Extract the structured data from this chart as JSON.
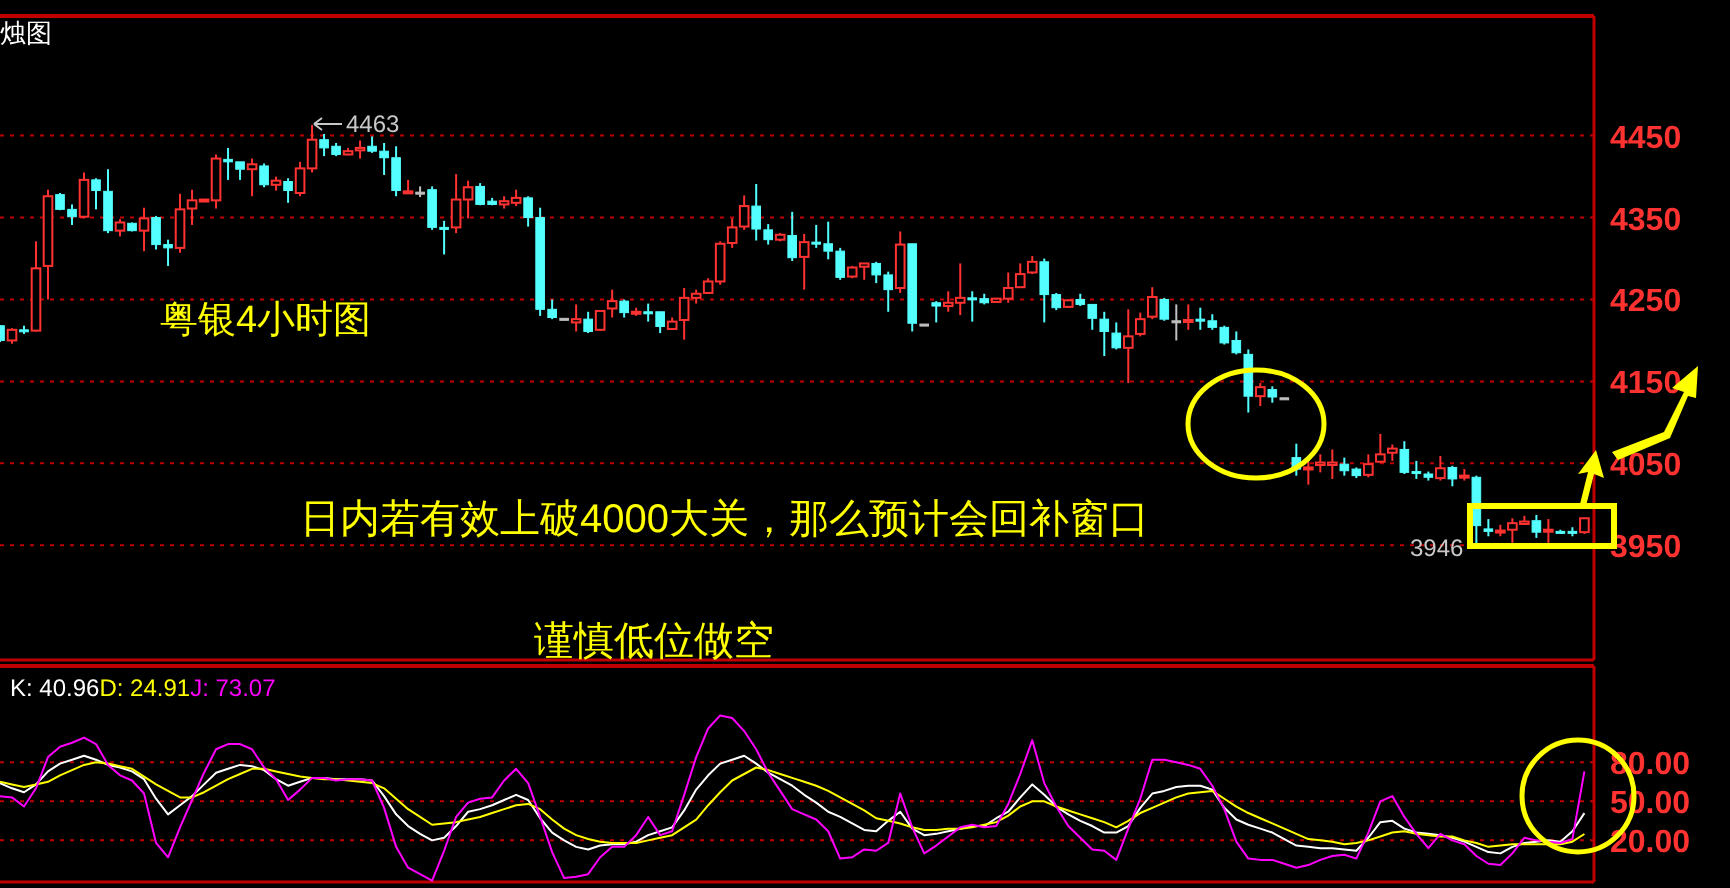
{
  "chart_data": [
    {
      "type": "candlestick",
      "title": "烛图",
      "categories": [
        null,
        null,
        null,
        null,
        null,
        null,
        null,
        null,
        null,
        null,
        null,
        null,
        null,
        null,
        null,
        null,
        null,
        null,
        null,
        null,
        null,
        null,
        null,
        null,
        null,
        null,
        null,
        null,
        null,
        null,
        null,
        null,
        null,
        null,
        null,
        null,
        null,
        null,
        null,
        null,
        null,
        null,
        null,
        null,
        null,
        null,
        null,
        null,
        null,
        null,
        null,
        null,
        null,
        null,
        null,
        null,
        null,
        null,
        null,
        null,
        null,
        null,
        null,
        null,
        null,
        null,
        null,
        null,
        null,
        null,
        null,
        null,
        null,
        null,
        null,
        null,
        null,
        null,
        null,
        null,
        null,
        null,
        null,
        null,
        null,
        null,
        null,
        null,
        null,
        null,
        null,
        null,
        null,
        null,
        null,
        null,
        null,
        null,
        null,
        null,
        null,
        null,
        null,
        null,
        null,
        null,
        null,
        null,
        null,
        null,
        null,
        null,
        null,
        null,
        null,
        null,
        null,
        null,
        null,
        null,
        null,
        null,
        null,
        null,
        null,
        null,
        null,
        null,
        null,
        null,
        null,
        null,
        null
      ],
      "ohlc": [
        [
          4218,
          4219,
          4198,
          4200
        ],
        [
          4200,
          4215,
          4196,
          4213
        ],
        [
          4213,
          4218,
          4208,
          4211
        ],
        [
          4212,
          4321,
          4211,
          4288
        ],
        [
          4291,
          4384,
          4250,
          4376
        ],
        [
          4378,
          4380,
          4359,
          4360
        ],
        [
          4360,
          4366,
          4341,
          4351
        ],
        [
          4351,
          4405,
          4349,
          4396
        ],
        [
          4396,
          4398,
          4360,
          4383
        ],
        [
          4382,
          4409,
          4331,
          4334
        ],
        [
          4334,
          4348,
          4327,
          4344
        ],
        [
          4343,
          4344,
          4333,
          4334
        ],
        [
          4334,
          4362,
          4309,
          4349
        ],
        [
          4350,
          4352,
          4311,
          4317
        ],
        [
          4317,
          4323,
          4291,
          4313
        ],
        [
          4313,
          4379,
          4307,
          4360
        ],
        [
          4361,
          4384,
          4341,
          4371
        ],
        [
          4370,
          4372,
          4370,
          4372
        ],
        [
          4371,
          4427,
          4361,
          4422
        ],
        [
          4421,
          4435,
          4396,
          4418
        ],
        [
          4418,
          4418,
          4396,
          4409
        ],
        [
          4409,
          4422,
          4376,
          4415
        ],
        [
          4413,
          4416,
          4387,
          4390
        ],
        [
          4390,
          4400,
          4383,
          4395
        ],
        [
          4394,
          4398,
          4368,
          4383
        ],
        [
          4380,
          4418,
          4376,
          4410
        ],
        [
          4410,
          4463,
          4405,
          4445
        ],
        [
          4445,
          4452,
          4425,
          4435
        ],
        [
          4437,
          4441,
          4425,
          4427
        ],
        [
          4427,
          4435,
          4426,
          4431
        ],
        [
          4432,
          4444,
          4422,
          4435
        ],
        [
          4437,
          4449,
          4429,
          4431
        ],
        [
          4431,
          4441,
          4402,
          4423
        ],
        [
          4423,
          4437,
          4376,
          4383
        ],
        [
          4380,
          4396,
          4379,
          4382
        ],
        [
          4381,
          4388,
          4375,
          4381
        ],
        [
          4384,
          4388,
          4335,
          4338
        ],
        [
          4338,
          4346,
          4305,
          4337
        ],
        [
          4338,
          4403,
          4331,
          4372
        ],
        [
          4372,
          4395,
          4349,
          4387
        ],
        [
          4388,
          4392,
          4365,
          4366
        ],
        [
          4370,
          4374,
          4365,
          4366
        ],
        [
          4366,
          4376,
          4361,
          4370
        ],
        [
          4368,
          4384,
          4364,
          4374
        ],
        [
          4374,
          4376,
          4339,
          4350
        ],
        [
          4350,
          4362,
          4230,
          4238
        ],
        [
          4238,
          4250,
          4226,
          4228
        ],
        [
          4227,
          4227,
          4227,
          4227
        ],
        [
          4222,
          4244,
          4211,
          4226
        ],
        [
          4226,
          4235,
          4209,
          4211
        ],
        [
          4213,
          4237,
          4212,
          4236
        ],
        [
          4239,
          4262,
          4228,
          4248
        ],
        [
          4248,
          4250,
          4228,
          4234
        ],
        [
          4233,
          4240,
          4230,
          4235
        ],
        [
          4235,
          4245,
          4223,
          4234
        ],
        [
          4235,
          4235,
          4209,
          4217
        ],
        [
          4214,
          4228,
          4213,
          4223
        ],
        [
          4225,
          4264,
          4201,
          4252
        ],
        [
          4252,
          4262,
          4245,
          4257
        ],
        [
          4258,
          4276,
          4257,
          4272
        ],
        [
          4272,
          4321,
          4268,
          4318
        ],
        [
          4319,
          4349,
          4313,
          4338
        ],
        [
          4339,
          4377,
          4335,
          4364
        ],
        [
          4364,
          4391,
          4322,
          4336
        ],
        [
          4335,
          4342,
          4317,
          4323
        ],
        [
          4323,
          4331,
          4321,
          4329
        ],
        [
          4328,
          4357,
          4297,
          4301
        ],
        [
          4302,
          4330,
          4262,
          4320
        ],
        [
          4320,
          4341,
          4313,
          4318
        ],
        [
          4318,
          4345,
          4299,
          4309
        ],
        [
          4309,
          4313,
          4274,
          4277
        ],
        [
          4278,
          4291,
          4276,
          4289
        ],
        [
          4290,
          4294,
          4274,
          4294
        ],
        [
          4294,
          4296,
          4270,
          4280
        ],
        [
          4280,
          4284,
          4235,
          4262
        ],
        [
          4264,
          4333,
          4258,
          4317
        ],
        [
          4318,
          4318,
          4211,
          4221
        ],
        [
          4220,
          4220,
          4220,
          4220
        ],
        [
          4246,
          4248,
          4222,
          4242
        ],
        [
          4242,
          4260,
          4235,
          4246
        ],
        [
          4246,
          4294,
          4231,
          4252
        ],
        [
          4252,
          4260,
          4223,
          4251
        ],
        [
          4251,
          4257,
          4244,
          4246
        ],
        [
          4247,
          4252,
          4247,
          4251
        ],
        [
          4251,
          4283,
          4246,
          4264
        ],
        [
          4265,
          4294,
          4264,
          4281
        ],
        [
          4283,
          4303,
          4281,
          4296
        ],
        [
          4296,
          4300,
          4222,
          4256
        ],
        [
          4256,
          4258,
          4237,
          4240
        ],
        [
          4241,
          4250,
          4240,
          4249
        ],
        [
          4250,
          4257,
          4242,
          4244
        ],
        [
          4244,
          4244,
          4213,
          4227
        ],
        [
          4226,
          4235,
          4181,
          4211
        ],
        [
          4209,
          4222,
          4189,
          4191
        ],
        [
          4191,
          4238,
          4148,
          4205
        ],
        [
          4208,
          4234,
          4205,
          4226
        ],
        [
          4229,
          4265,
          4226,
          4253
        ],
        [
          4250,
          4252,
          4224,
          4226
        ],
        [
          4224,
          4244,
          4200,
          4224
        ],
        [
          4223,
          4244,
          4213,
          4225
        ],
        [
          4226,
          4240,
          4213,
          4224
        ],
        [
          4224,
          4232,
          4213,
          4216
        ],
        [
          4216,
          4218,
          4195,
          4197
        ],
        [
          4200,
          4211,
          4183,
          4185
        ],
        [
          4183,
          4189,
          4112,
          4132
        ],
        [
          4132,
          4148,
          4120,
          4143
        ],
        [
          4140,
          4144,
          4124,
          4131
        ],
        [
          4130,
          4130,
          4130,
          4130
        ],
        [
          4057,
          4074,
          4035,
          4043
        ],
        [
          4043,
          4055,
          4024,
          4045
        ],
        [
          4048,
          4061,
          4039,
          4051
        ],
        [
          4048,
          4067,
          4031,
          4051
        ],
        [
          4049,
          4057,
          4035,
          4041
        ],
        [
          4043,
          4045,
          4032,
          4035
        ],
        [
          4036,
          4061,
          4033,
          4049
        ],
        [
          4052,
          4086,
          4051,
          4061
        ],
        [
          4063,
          4073,
          4053,
          4068
        ],
        [
          4067,
          4077,
          4037,
          4039
        ],
        [
          4040,
          4053,
          4031,
          4039
        ],
        [
          4037,
          4040,
          4029,
          4033
        ],
        [
          4032,
          4059,
          4029,
          4044
        ],
        [
          4045,
          4047,
          4022,
          4031
        ],
        [
          4033,
          4043,
          4029,
          4035
        ],
        [
          4033,
          4035,
          3946,
          3974
        ],
        [
          3970,
          3982,
          3961,
          3967
        ],
        [
          3966,
          3975,
          3961,
          3968
        ],
        [
          3969,
          3983,
          3953,
          3977
        ],
        [
          3976,
          3986,
          3975,
          3979
        ],
        [
          3980,
          3987,
          3959,
          3966
        ],
        [
          3967,
          3982,
          3953,
          3969
        ],
        [
          3967,
          3969,
          3964,
          3966
        ],
        [
          3967,
          3972,
          3961,
          3965
        ],
        [
          3966,
          3983,
          3964,
          3983
        ]
      ],
      "ylim": [
        3810,
        4596
      ],
      "yticks": [
        3950,
        4050,
        4150,
        4250,
        4350,
        4450
      ],
      "grid": "y",
      "tick_labels": "y",
      "annotations": [
        "粤银4小时图",
        "日内若有效上破4000大关，那么预计会回补窗口",
        "谨慎低位做空",
        "4463",
        "3946"
      ]
    },
    {
      "type": "line",
      "categories": [
        null,
        null,
        null,
        null,
        null,
        null,
        null,
        null,
        null,
        null,
        null,
        null,
        null,
        null,
        null,
        null,
        null,
        null,
        null,
        null,
        null,
        null,
        null,
        null,
        null,
        null,
        null,
        null,
        null,
        null,
        null,
        null,
        null,
        null,
        null,
        null,
        null,
        null,
        null,
        null,
        null,
        null,
        null,
        null,
        null,
        null,
        null,
        null,
        null,
        null,
        null,
        null,
        null,
        null,
        null,
        null,
        null,
        null,
        null,
        null,
        null,
        null,
        null,
        null,
        null,
        null,
        null,
        null,
        null,
        null,
        null,
        null,
        null,
        null,
        null,
        null,
        null,
        null,
        null,
        null,
        null,
        null,
        null,
        null,
        null,
        null,
        null,
        null,
        null,
        null,
        null,
        null,
        null,
        null,
        null,
        null,
        null,
        null,
        null,
        null,
        null,
        null,
        null,
        null,
        null,
        null,
        null,
        null,
        null,
        null,
        null,
        null,
        null,
        null,
        null,
        null,
        null,
        null,
        null,
        null,
        null,
        null,
        null,
        null,
        null,
        null,
        null,
        null,
        null,
        null,
        null,
        null,
        null
      ],
      "ylim": [
        -12,
        154
      ],
      "yticks": [
        {
          "value": 20,
          "label": "20.00"
        },
        {
          "value": 50,
          "label": "50.00"
        },
        {
          "value": 80,
          "label": "80.00"
        }
      ],
      "grid": "y",
      "tick_labels": "y",
      "series": [
        {
          "name": "K: 40.96",
          "color": "#ffffff",
          "values": [
            64,
            60,
            57,
            63,
            73,
            79,
            82,
            85,
            82,
            78,
            76,
            73,
            67,
            52,
            40,
            47,
            54,
            63,
            72,
            75,
            78,
            77,
            74,
            67,
            62,
            65,
            68,
            68,
            67,
            67,
            67,
            66,
            54,
            40,
            31,
            25,
            20,
            22,
            31,
            42,
            44,
            47,
            51,
            55,
            51,
            37,
            26,
            20,
            15,
            13,
            16,
            17,
            17,
            19,
            24,
            27,
            30,
            43,
            59,
            70,
            79,
            82,
            85,
            79,
            72,
            67,
            62,
            55,
            49,
            42,
            38,
            33,
            28,
            27,
            35,
            42,
            29,
            24,
            25,
            27,
            29,
            31,
            31,
            37,
            42,
            53,
            63,
            55,
            46,
            40,
            35,
            31,
            26,
            26,
            31,
            45,
            56,
            58,
            61,
            62,
            62,
            59,
            45,
            36,
            32,
            29,
            26,
            21,
            16,
            15,
            14,
            14,
            13,
            12,
            22,
            34,
            35,
            29,
            26,
            25,
            24,
            22,
            19,
            15,
            11,
            10,
            15,
            18,
            19,
            20,
            19,
            27,
            40.96
          ]
        },
        {
          "name": "D: 24.91",
          "color": "#ffff00",
          "values": [
            65,
            63,
            61,
            63,
            65,
            70,
            74,
            78,
            80,
            79,
            77,
            75,
            69,
            63,
            58,
            53,
            53,
            57,
            62,
            67,
            71,
            75,
            75,
            73,
            71,
            69,
            68,
            67,
            67,
            66,
            65,
            64,
            60,
            52,
            44,
            38,
            32,
            33,
            34,
            36,
            38,
            41,
            44,
            47,
            48,
            44,
            36,
            29,
            24,
            21,
            19,
            18,
            18,
            18,
            20,
            22,
            24,
            30,
            36,
            47,
            57,
            66,
            71,
            76,
            74,
            71,
            68,
            65,
            62,
            58,
            53,
            48,
            43,
            37,
            35,
            33,
            30,
            28,
            28,
            29,
            29,
            30,
            32,
            34,
            39,
            46,
            50,
            50,
            46,
            43,
            40,
            37,
            34,
            30,
            35,
            41,
            45,
            49,
            53,
            56,
            57,
            58,
            52,
            46,
            41,
            37,
            33,
            29,
            25,
            21,
            20,
            19,
            17,
            18,
            20,
            23,
            26,
            27,
            25,
            24,
            23,
            23,
            20,
            18,
            15,
            16,
            17,
            17,
            17,
            17,
            17,
            19,
            24.91
          ]
        },
        {
          "name": "J: 73.07",
          "color": "#ff00ff",
          "values": [
            54,
            53,
            46,
            60,
            84,
            92,
            95,
            99,
            94,
            78,
            70,
            66,
            56,
            18,
            7,
            30,
            51,
            72,
            90,
            94,
            94,
            90,
            76,
            67,
            51,
            59,
            68,
            68,
            66,
            67,
            67,
            66,
            45,
            15,
            -1,
            -6,
            -11,
            12,
            38,
            49,
            52,
            53,
            66,
            75,
            64,
            38,
            11,
            -9,
            -8,
            -6,
            7,
            15,
            15,
            24,
            38,
            24,
            27,
            55,
            84,
            106,
            116,
            114,
            104,
            90,
            72,
            58,
            44,
            40,
            36,
            27,
            6,
            7,
            13,
            12,
            18,
            56,
            30,
            10,
            16,
            23,
            30,
            32,
            30,
            31,
            48,
            71,
            97,
            64,
            46,
            31,
            22,
            13,
            12,
            5,
            29,
            52,
            82,
            82,
            80,
            78,
            75,
            62,
            44,
            19,
            6,
            5,
            5,
            2,
            -1,
            1,
            5,
            8,
            9,
            6,
            26,
            50,
            54,
            38,
            25,
            14,
            25,
            20,
            17,
            8,
            2,
            1,
            10,
            22,
            20,
            19,
            18,
            21,
            73.07
          ]
        }
      ]
    }
  ]
}
